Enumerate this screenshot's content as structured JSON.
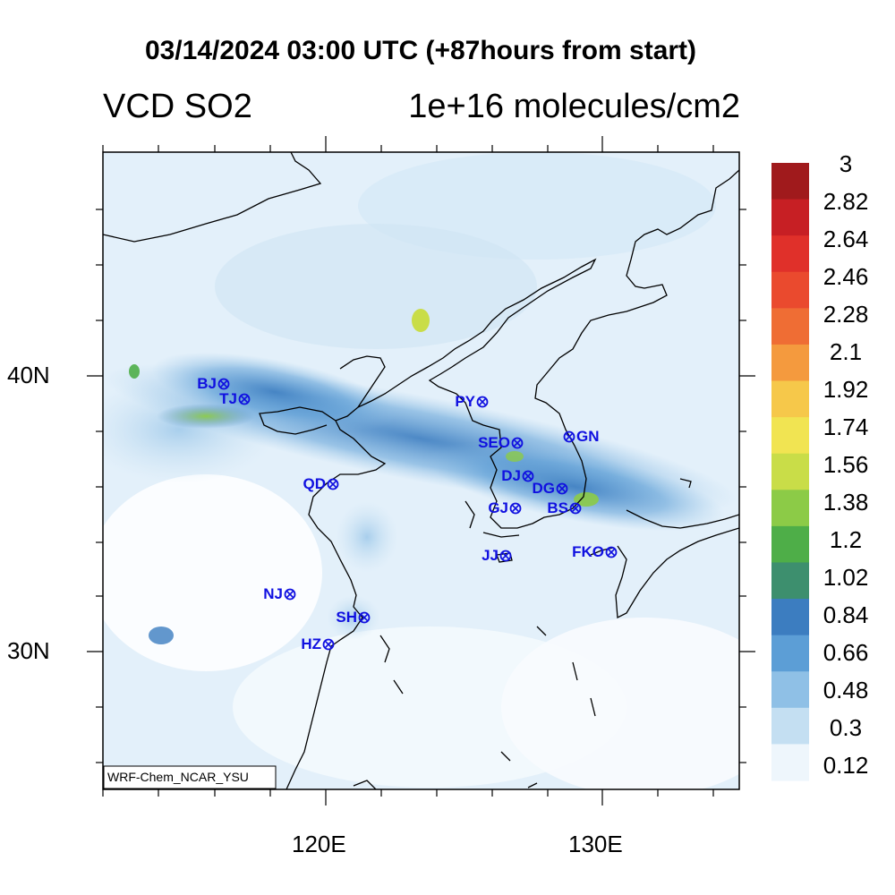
{
  "title": "03/14/2024 03:00 UTC (+87hours from start)",
  "variable": "VCD SO2",
  "units": "1e+16 molecules/cm2",
  "model_label": "WRF-Chem_NCAR_YSU",
  "lat_labels": [
    "40N",
    "30N"
  ],
  "lon_labels": [
    "120E",
    "130E"
  ],
  "colorbar": {
    "labels": [
      "3",
      "2.82",
      "2.64",
      "2.46",
      "2.28",
      "2.1",
      "1.92",
      "1.74",
      "1.56",
      "1.38",
      "1.2",
      "1.02",
      "0.84",
      "0.66",
      "0.48",
      "0.3",
      "0.12"
    ],
    "colors": [
      "#a01a1c",
      "#c71f24",
      "#e0302a",
      "#ea4a2e",
      "#ef6d34",
      "#f49a3e",
      "#f6c84a",
      "#f1e452",
      "#c9dd48",
      "#8ccb47",
      "#4eae48",
      "#3d8f6e",
      "#3c7dc0",
      "#5c9ed6",
      "#8fc0e6",
      "#c4dff2",
      "#eef6fc"
    ]
  },
  "stations": [
    {
      "code": "BJ"
    },
    {
      "code": "TJ"
    },
    {
      "code": "PY"
    },
    {
      "code": "SEO"
    },
    {
      "code": "GN"
    },
    {
      "code": "QD"
    },
    {
      "code": "DJ"
    },
    {
      "code": "DG"
    },
    {
      "code": "GJ"
    },
    {
      "code": "BS"
    },
    {
      "code": "JJ"
    },
    {
      "code": "FKO"
    },
    {
      "code": "NJ"
    },
    {
      "code": "SH"
    },
    {
      "code": "HZ"
    }
  ],
  "colors": {
    "station": "#1010e0",
    "coast": "#000000"
  }
}
